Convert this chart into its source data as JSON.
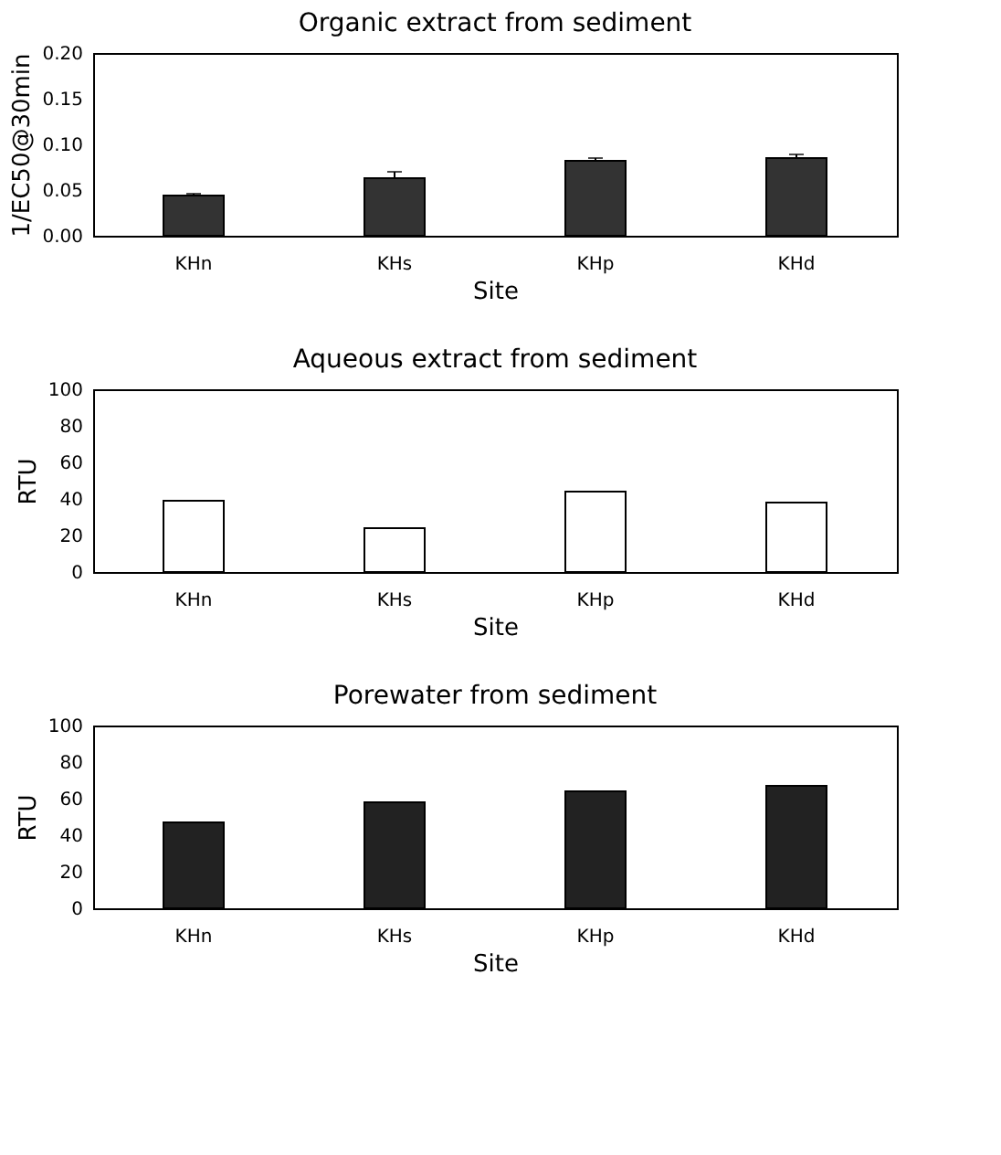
{
  "chart_data": [
    {
      "type": "bar",
      "title": "Organic extract from sediment",
      "xlabel": "Site",
      "ylabel": "1/EC50@30min",
      "categories": [
        "KHn",
        "KHs",
        "KHp",
        "KHd"
      ],
      "values": [
        0.044,
        0.063,
        0.082,
        0.085
      ],
      "errors": [
        [
          0.044,
          0.046
        ],
        [
          0.063,
          0.07
        ],
        [
          0.082,
          0.085
        ],
        [
          0.085,
          0.089
        ]
      ],
      "color": "#333333",
      "ylim": [
        0,
        0.2
      ],
      "yticks": [
        {
          "value": 0,
          "label": "0.00"
        },
        {
          "value": 0.05,
          "label": "0.05"
        },
        {
          "value": 0.1,
          "label": "0.10"
        },
        {
          "value": 0.15,
          "label": "0.15"
        },
        {
          "value": 0.2,
          "label": "0.20"
        }
      ],
      "grid": false
    },
    {
      "type": "bar",
      "title": "Aqueous extract from sediment",
      "xlabel": "Site",
      "ylabel": "RTU",
      "categories": [
        "KHn",
        "KHs",
        "KHp",
        "KHd"
      ],
      "values": [
        39,
        24,
        44,
        38
      ],
      "color": "#ffffff",
      "ylim": [
        0,
        100
      ],
      "yticks": [
        0,
        20,
        40,
        60,
        80,
        100
      ],
      "grid": false
    },
    {
      "type": "bar",
      "title": "Porewater from sediment",
      "xlabel": "Site",
      "ylabel": "RTU",
      "categories": [
        "KHn",
        "KHs",
        "KHp",
        "KHd"
      ],
      "values": [
        47,
        58,
        64,
        67
      ],
      "color": "#222222",
      "ylim": [
        0,
        100
      ],
      "yticks": [
        0,
        20,
        40,
        60,
        80,
        100
      ],
      "grid": false
    }
  ]
}
